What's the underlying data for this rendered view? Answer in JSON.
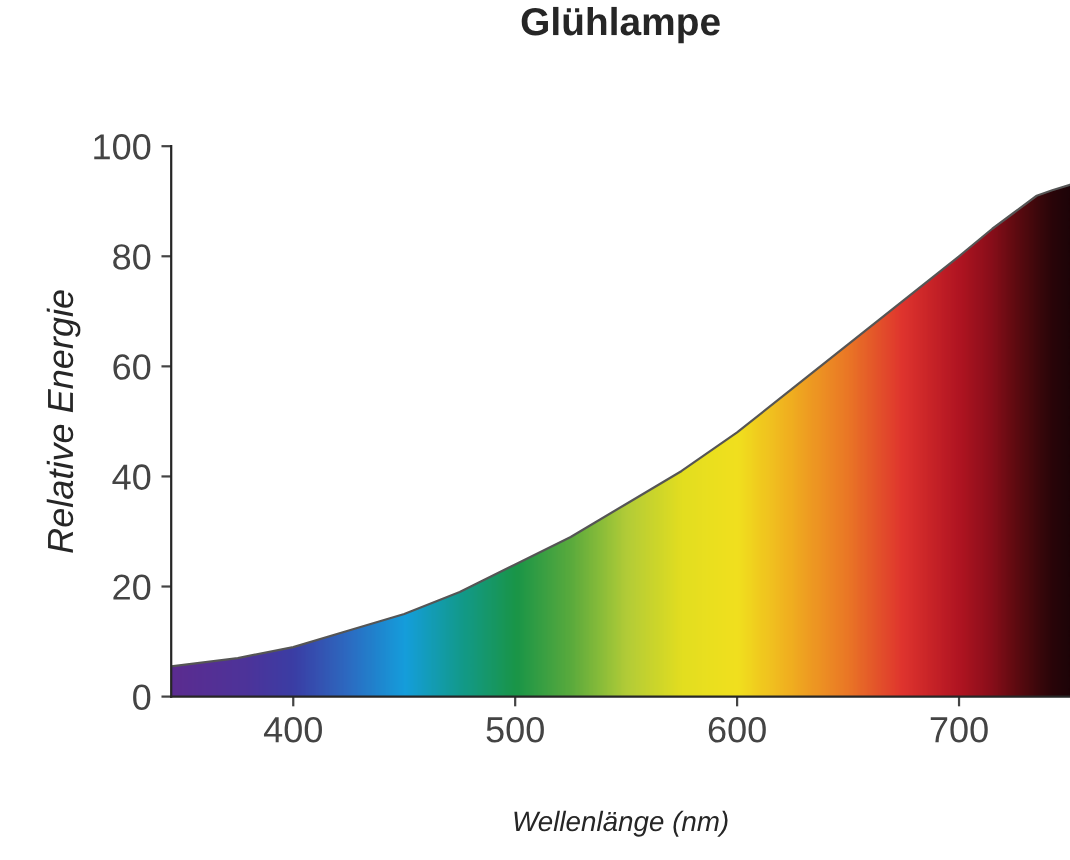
{
  "chart_data": {
    "type": "area",
    "title": "Glühlampe",
    "xlabel": "Wellenlänge (nm)",
    "ylabel": "Relative Energie",
    "x": [
      345,
      375,
      400,
      425,
      450,
      475,
      500,
      525,
      550,
      575,
      600,
      625,
      650,
      675,
      700,
      715,
      725,
      735,
      742,
      750
    ],
    "series": [
      {
        "values": [
          5.5,
          7,
          9,
          12,
          15,
          19,
          24,
          29,
          35,
          41,
          48,
          56,
          64,
          72,
          80,
          85,
          88,
          91,
          92,
          93
        ],
        "colors": [
          "#5b2c90",
          "#4f3399",
          "#3a3fa6",
          "#2a6fc4",
          "#12a3df",
          "#0f9f8c",
          "#179a45",
          "#5bb03a",
          "#b6d334",
          "#e9e51c",
          "#f7e81a",
          "#f6b21c",
          "#f07a22",
          "#e4342a",
          "#b5141e",
          "#8a0d15",
          "#620a0c",
          "#3d0707",
          "#280404",
          "#1c0303"
        ]
      }
    ],
    "xlim": [
      345,
      750
    ],
    "ylim": [
      0,
      100
    ],
    "xticks": [
      400,
      500,
      600,
      700
    ],
    "yticks": [
      0,
      20,
      40,
      60,
      80,
      100
    ],
    "grid": false
  }
}
